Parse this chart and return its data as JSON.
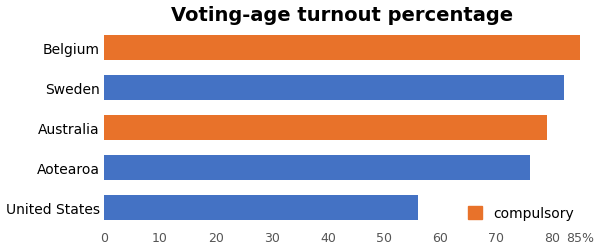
{
  "title": "Voting-age turnout percentage",
  "categories": [
    "Belgium",
    "Sweden",
    "Australia",
    "Aotearoa",
    "United States"
  ],
  "values": [
    87,
    82,
    79,
    76,
    56
  ],
  "colors": [
    "#E8722A",
    "#4472C4",
    "#E8722A",
    "#4472C4",
    "#4472C4"
  ],
  "xlim": [
    0,
    85
  ],
  "xticks": [
    0,
    10,
    20,
    30,
    40,
    50,
    60,
    70,
    80
  ],
  "bar_height": 0.62,
  "legend_label": "compulsory",
  "legend_color": "#E8722A",
  "bg_color": "#FFFFFF",
  "title_fontsize": 14,
  "label_fontsize": 10,
  "tick_fontsize": 9
}
